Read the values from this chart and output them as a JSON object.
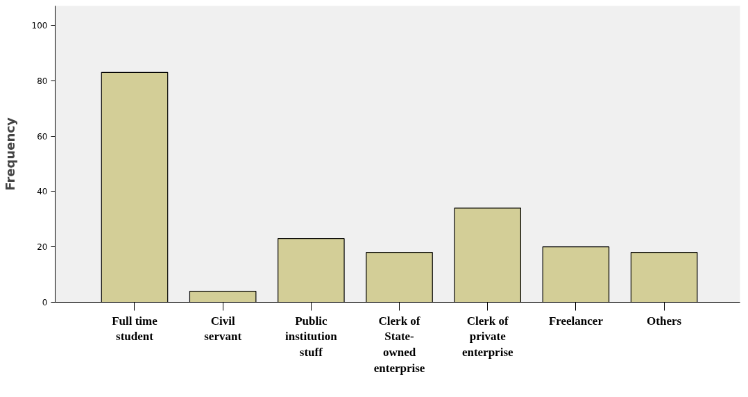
{
  "chart_data": {
    "type": "bar",
    "ylabel": "Frequency",
    "categories": [
      "Full time student",
      "Civil servant",
      "Public institution stuff",
      "Clerk of State-owned enterprise",
      "Clerk of private enterprise",
      "Freelancer",
      "Others"
    ],
    "values": [
      83,
      4,
      23,
      18,
      34,
      20,
      18
    ],
    "color": "#d3ce97",
    "ylim": [
      0,
      107
    ],
    "yticks": [
      0,
      20,
      40,
      60,
      80,
      100
    ],
    "grid": false
  }
}
